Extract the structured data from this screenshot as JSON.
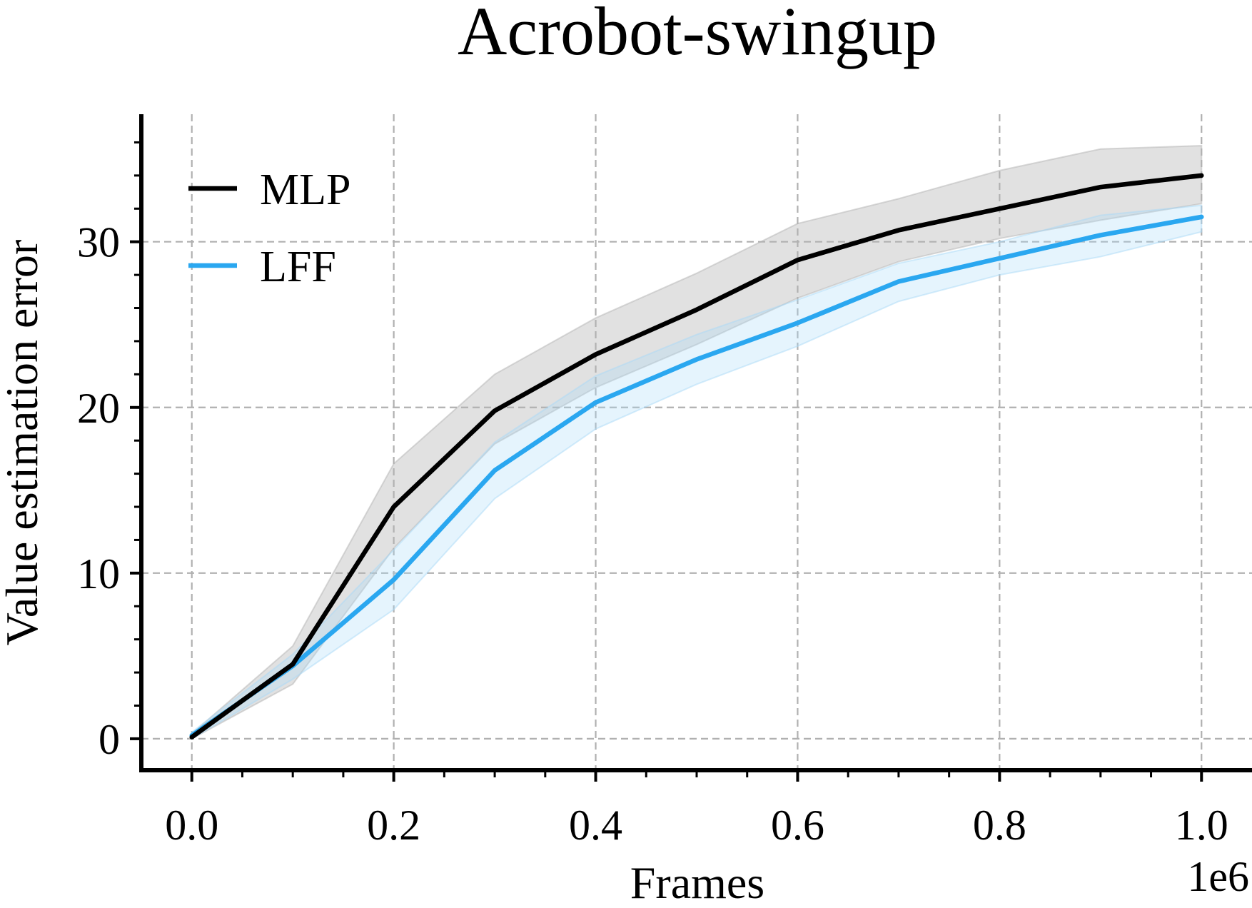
{
  "chart_data": {
    "type": "line",
    "title": "Acrobot-swingup",
    "xlabel": "Frames",
    "ylabel": "Value estimation error",
    "x_offset_label": "1e6",
    "x": [
      0.0,
      0.1,
      0.2,
      0.3,
      0.4,
      0.5,
      0.6,
      0.7,
      0.8,
      0.9,
      1.0
    ],
    "xlim": [
      -0.05,
      1.05
    ],
    "ylim": [
      -1.9,
      37.7
    ],
    "xticks": [
      "0.0",
      "0.2",
      "0.4",
      "0.6",
      "0.8",
      "1.0"
    ],
    "yticks": [
      "0",
      "10",
      "20",
      "30"
    ],
    "grid": true,
    "legend_position": "top-left",
    "series": [
      {
        "name": "MLP",
        "color": "#000000",
        "band_color": "#b4b4b4",
        "values": [
          0.1,
          4.5,
          14.0,
          19.8,
          23.2,
          25.9,
          28.9,
          30.7,
          32.0,
          33.3,
          34.0
        ],
        "lower": [
          0.0,
          3.3,
          11.5,
          17.8,
          21.2,
          23.8,
          26.6,
          28.8,
          30.2,
          31.3,
          32.3
        ],
        "upper": [
          0.3,
          5.6,
          16.6,
          22.0,
          25.4,
          28.1,
          31.1,
          32.6,
          34.3,
          35.6,
          35.8
        ]
      },
      {
        "name": "LFF",
        "color": "#2aa7f0",
        "band_color": "#a9daf7",
        "values": [
          0.2,
          4.4,
          9.6,
          16.2,
          20.3,
          22.9,
          25.1,
          27.6,
          29.0,
          30.4,
          31.5
        ],
        "lower": [
          0.0,
          3.6,
          7.8,
          14.5,
          18.7,
          21.4,
          23.7,
          26.4,
          28.0,
          29.1,
          30.6
        ],
        "upper": [
          0.4,
          5.1,
          11.4,
          17.9,
          21.9,
          24.4,
          26.5,
          28.7,
          30.0,
          31.6,
          32.2
        ]
      }
    ]
  }
}
